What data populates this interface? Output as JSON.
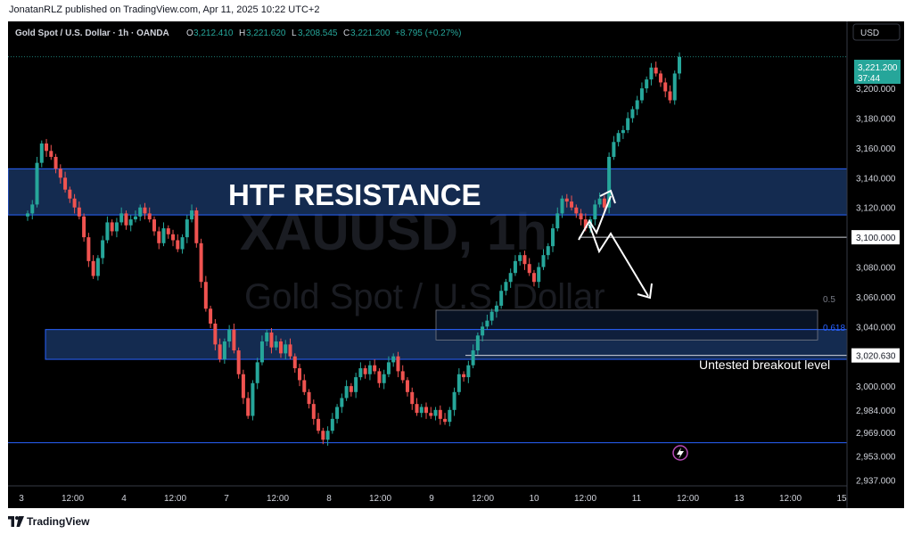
{
  "header": {
    "publisher_line": "JonatanRLZ published on TradingView.com, Apr 11, 2025 10:22 UTC+2"
  },
  "symbol": {
    "title": "Gold Spot / U.S. Dollar · 1h · OANDA",
    "open_label": "O",
    "open": "3,212.410",
    "high_label": "H",
    "high": "3,221.620",
    "low_label": "L",
    "low": "3,208.545",
    "close_label": "C",
    "close": "3,221.200",
    "change": "+8.795 (+0.27%)",
    "currency": "USD",
    "watermark_ticker": "XAUUSD, 1h",
    "watermark_name": "Gold Spot / U.S. Dollar"
  },
  "price_tag": {
    "price": "3,221.200",
    "countdown": "37:44"
  },
  "footer": {
    "brand": "TradingView"
  },
  "colors": {
    "up": "#26a69a",
    "down": "#ef5350",
    "zone_fill": "#1b3a6b",
    "zone_border": "#2962ff",
    "price_tag": "#26a69a",
    "background": "#000000",
    "text": "#d1d4dc"
  },
  "chart_data": {
    "type": "candlestick",
    "title": "Gold Spot / U.S. Dollar · 1h · OANDA",
    "ylabel": "USD",
    "y_axis_ticks": [
      3200,
      3180,
      3160,
      3140,
      3120,
      3100,
      3080,
      3060,
      3040,
      3020,
      3000,
      2984,
      2969,
      2953,
      2937
    ],
    "y_axis_tick_labels": [
      "3,200.000",
      "3,180.000",
      "3,160.000",
      "3,140.000",
      "3,120.000",
      "3,100.000",
      "3,080.000",
      "3,060.000",
      "3,040.000",
      "3,020.000",
      "3,000.000",
      "2,984.000",
      "2,969.000",
      "2,953.000",
      "2,937.000"
    ],
    "ylim": [
      2933,
      3245
    ],
    "x_axis_ticks": [
      "3",
      "12:00",
      "4",
      "12:00",
      "7",
      "12:00",
      "8",
      "12:00",
      "9",
      "12:00",
      "10",
      "12:00",
      "11",
      "12:00",
      "13",
      "12:00",
      "15"
    ],
    "price_levels": [
      {
        "name": "level-3100",
        "value": 3100,
        "label": "3,100.000"
      },
      {
        "name": "level-3020",
        "value": 3020.63,
        "label": "3,020.630"
      },
      {
        "name": "level-2962",
        "value": 2962
      }
    ],
    "zones": [
      {
        "name": "htf-resistance",
        "label": "HTF RESISTANCE",
        "low": 3115,
        "high": 3146
      },
      {
        "name": "support-zone",
        "low": 3018,
        "high": 3038
      },
      {
        "name": "fib-box",
        "low": 3031,
        "high": 3051
      }
    ],
    "fib_labels": [
      {
        "label": "0.5",
        "value": 3053
      },
      {
        "label": "0.618",
        "value": 3038
      }
    ],
    "annotations": [
      {
        "text": "Untested breakout level",
        "value": 3013
      }
    ],
    "candle_series": [
      3116,
      3122,
      3150,
      3163,
      3158,
      3154,
      3146,
      3140,
      3132,
      3126,
      3120,
      3114,
      3100,
      3084,
      3074,
      3086,
      3098,
      3110,
      3104,
      3110,
      3116,
      3108,
      3112,
      3114,
      3120,
      3116,
      3112,
      3104,
      3096,
      3106,
      3102,
      3098,
      3092,
      3100,
      3112,
      3118,
      3096,
      3070,
      3052,
      3042,
      3028,
      3018,
      3030,
      3038,
      3024,
      3008,
      2992,
      2980,
      3002,
      3016,
      3030,
      3036,
      3026,
      3030,
      3022,
      3028,
      3020,
      3012,
      3004,
      2996,
      2988,
      2978,
      2970,
      2964,
      2970,
      2978,
      2986,
      2992,
      3000,
      2996,
      3006,
      3012,
      3008,
      3014,
      3010,
      3002,
      3008,
      3016,
      3020,
      3010,
      3004,
      2996,
      2988,
      2982,
      2986,
      2982,
      2980,
      2984,
      2978,
      2976,
      2984,
      2996,
      3008,
      3006,
      3014,
      3024,
      3034,
      3040,
      3044,
      3050,
      3054,
      3064,
      3070,
      3076,
      3084,
      3088,
      3082,
      3076,
      3070,
      3080,
      3088,
      3094,
      3106,
      3116,
      3126,
      3124,
      3120,
      3116,
      3112,
      3106,
      3112,
      3122,
      3126,
      3120,
      3154,
      3164,
      3170,
      3172,
      3180,
      3186,
      3192,
      3200,
      3206,
      3214,
      3210,
      3204,
      3198,
      3192,
      3210,
      3221.2
    ]
  }
}
